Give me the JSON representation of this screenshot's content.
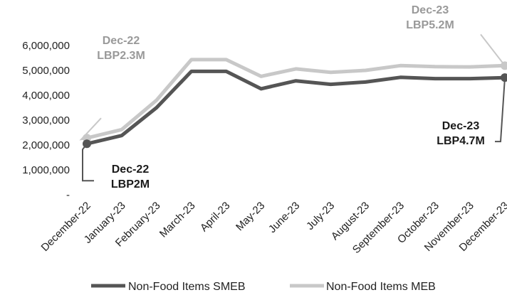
{
  "chart_data": {
    "type": "line",
    "categories": [
      "December-22",
      "January-23",
      "February-23",
      "March-23",
      "April-23",
      "May-23",
      "June-23",
      "July-23",
      "August-23",
      "September-23",
      "October-23",
      "November-23",
      "December-23"
    ],
    "series": [
      {
        "name": "Non-Food Items SMEB",
        "color": "#555555",
        "values": [
          2050000,
          2380000,
          3500000,
          4960000,
          4960000,
          4260000,
          4580000,
          4440000,
          4530000,
          4720000,
          4670000,
          4670000,
          4710000
        ]
      },
      {
        "name": "Non-Food Items MEB",
        "color": "#c8c8c8",
        "values": [
          2280000,
          2620000,
          3800000,
          5430000,
          5430000,
          4760000,
          5060000,
          4920000,
          5000000,
          5190000,
          5150000,
          5140000,
          5190000
        ]
      }
    ],
    "yticks": [
      "-",
      "1,000,000",
      "2,000,000",
      "3,000,000",
      "4,000,000",
      "5,000,000",
      "6,000,000"
    ],
    "ylim": [
      0,
      6000000
    ],
    "grid": false,
    "legend": "bottom",
    "annotations": [
      {
        "line1": "Dec-22",
        "line2": "LBP2.3M",
        "series": 1,
        "index": 0,
        "color": "#999999"
      },
      {
        "line1": "Dec-22",
        "line2": "LBP2M",
        "series": 0,
        "index": 0,
        "color": "#1a1a1a"
      },
      {
        "line1": "Dec-23",
        "line2": "LBP5.2M",
        "series": 1,
        "index": 12,
        "color": "#999999"
      },
      {
        "line1": "Dec-23",
        "line2": "LBP4.7M",
        "series": 0,
        "index": 12,
        "color": "#1a1a1a"
      }
    ]
  }
}
